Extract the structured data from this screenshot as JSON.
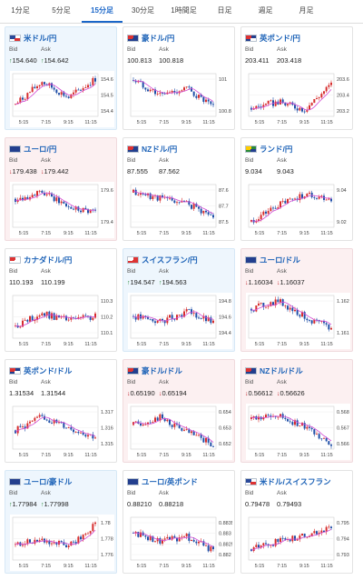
{
  "tabs": [
    "1分足",
    "5分足",
    "15分足",
    "30分足",
    "1時間足",
    "日足",
    "週足",
    "月足"
  ],
  "active_tab": 2,
  "labels": {
    "bid": "Bid",
    "ask": "Ask"
  },
  "colors": {
    "up_candle": "#d62d2d",
    "down_candle": "#1f4fa8",
    "ma_line": "#d34bd3",
    "link": "#1f64b8",
    "arrow_up": "#2a8a3a",
    "arrow_down": "#c0282e"
  },
  "x_ticks": [
    "5:15",
    "7:15",
    "9:15",
    "11:15"
  ],
  "cards": [
    {
      "pair": "米ドル/円",
      "flag": "US",
      "bid": "154.640",
      "ask": "154.642",
      "direction": "up",
      "y_ticks": [
        "154.6",
        "154.5",
        "154.4"
      ],
      "ylim": [
        154.36,
        154.68
      ],
      "trend": [
        154.45,
        154.62,
        154.5,
        154.64
      ]
    },
    {
      "pair": "豪ドル/円",
      "flag": "AU",
      "bid": "100.813",
      "ask": "100.818",
      "direction": "none",
      "y_ticks": [
        "101",
        "100.8"
      ],
      "ylim": [
        100.72,
        101.12
      ],
      "trend": [
        101.06,
        100.92,
        100.98,
        100.8
      ]
    },
    {
      "pair": "英ポンド/円",
      "flag": "UK",
      "bid": "203.411",
      "ask": "203.418",
      "direction": "none",
      "y_ticks": [
        "203.6",
        "203.4",
        "203.2"
      ],
      "ylim": [
        203.1,
        203.7
      ],
      "trend": [
        203.22,
        203.3,
        203.2,
        203.55
      ]
    },
    {
      "pair": "ユーロ/円",
      "flag": "EU",
      "bid": "179.438",
      "ask": "179.442",
      "direction": "down",
      "y_ticks": [
        "179.6",
        "179.4"
      ],
      "ylim": [
        179.28,
        179.7
      ],
      "trend": [
        179.56,
        179.62,
        179.48,
        179.44
      ]
    },
    {
      "pair": "NZドル/円",
      "flag": "NZ",
      "bid": "87.555",
      "ask": "87.562",
      "direction": "none",
      "y_ticks": [
        "87.6",
        "87.7",
        "87.5"
      ],
      "ylim": [
        87.44,
        87.76
      ],
      "trend": [
        87.7,
        87.66,
        87.62,
        87.52
      ]
    },
    {
      "pair": "ランド/円",
      "flag": "ZA",
      "bid": "9.034",
      "ask": "9.043",
      "direction": "none",
      "y_ticks": [
        "9.04",
        "9.02"
      ],
      "ylim": [
        9.005,
        9.058
      ],
      "trend": [
        9.012,
        9.032,
        9.046,
        9.04
      ]
    },
    {
      "pair": "カナダドル/円",
      "flag": "CA",
      "bid": "110.193",
      "ask": "110.199",
      "direction": "none",
      "y_ticks": [
        "110.3",
        "110.2",
        "110.1"
      ],
      "ylim": [
        110.06,
        110.34
      ],
      "trend": [
        110.14,
        110.22,
        110.18,
        110.2
      ]
    },
    {
      "pair": "スイスフラン/円",
      "flag": "CH",
      "bid": "194.547",
      "ask": "194.563",
      "direction": "up",
      "y_ticks": [
        "194.8",
        "194.6",
        "194.4"
      ],
      "ylim": [
        194.34,
        194.92
      ],
      "trend": [
        194.64,
        194.56,
        194.7,
        194.55
      ]
    },
    {
      "pair": "ユーロ/ドル",
      "flag": "EU",
      "bid": "1.16034",
      "ask": "1.16037",
      "direction": "down",
      "y_ticks": [
        "1.162",
        "1.161"
      ],
      "ylim": [
        1.1596,
        1.1628
      ],
      "trend": [
        1.1618,
        1.1624,
        1.1612,
        1.1603
      ]
    },
    {
      "pair": "英ポンド/ドル",
      "flag": "UK",
      "bid": "1.31534",
      "ask": "1.31544",
      "direction": "none",
      "y_ticks": [
        "1.317",
        "1.316",
        "1.315"
      ],
      "ylim": [
        1.3144,
        1.3176
      ],
      "trend": [
        1.3158,
        1.3168,
        1.316,
        1.3153
      ]
    },
    {
      "pair": "豪ドル/ドル",
      "flag": "AU",
      "bid": "0.65190",
      "ask": "0.65194",
      "direction": "down",
      "y_ticks": [
        "0.654",
        "0.653",
        "0.652"
      ],
      "ylim": [
        0.6516,
        0.6546
      ],
      "trend": [
        0.6533,
        0.6538,
        0.6528,
        0.6519
      ]
    },
    {
      "pair": "NZドル/ドル",
      "flag": "NZ",
      "bid": "0.56612",
      "ask": "0.56626",
      "direction": "down",
      "y_ticks": [
        "0.568",
        "0.567",
        "0.566"
      ],
      "ylim": [
        0.5657,
        0.5684
      ],
      "trend": [
        0.5676,
        0.5678,
        0.5671,
        0.5661
      ]
    },
    {
      "pair": "ユーロ/豪ドル",
      "flag": "EU",
      "bid": "1.77984",
      "ask": "1.77998",
      "direction": "up",
      "y_ticks": [
        "1.78",
        "1.778",
        "1.776"
      ],
      "ylim": [
        1.7752,
        1.7808
      ],
      "trend": [
        1.7772,
        1.7778,
        1.777,
        1.7798
      ]
    },
    {
      "pair": "ユーロ/英ポンド",
      "flag": "EU",
      "bid": "0.88210",
      "ask": "0.88218",
      "direction": "none",
      "y_ticks": [
        "0.8835",
        "0.883",
        "0.8825",
        "0.882"
      ],
      "ylim": [
        0.8816,
        0.8838
      ],
      "trend": [
        0.883,
        0.8826,
        0.8828,
        0.8821
      ]
    },
    {
      "pair": "米ドル/スイスフラン",
      "flag": "US",
      "bid": "0.79478",
      "ask": "0.79493",
      "direction": "none",
      "y_ticks": [
        "0.795",
        "0.794",
        "0.793"
      ],
      "ylim": [
        0.7924,
        0.7956
      ],
      "trend": [
        0.7932,
        0.7938,
        0.7942,
        0.7948
      ]
    }
  ]
}
